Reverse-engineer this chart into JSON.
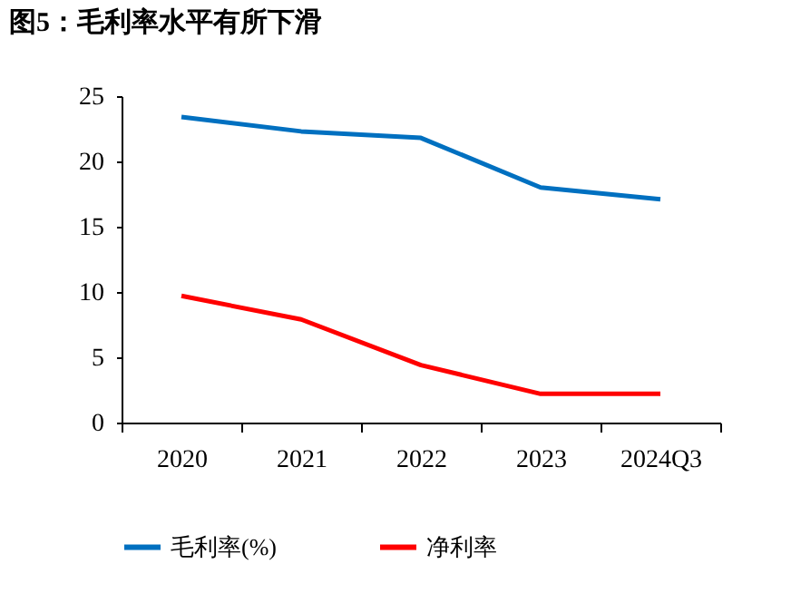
{
  "chart_data": {
    "type": "line",
    "title": "图5：毛利率水平有所下滑",
    "categories": [
      "2020",
      "2021",
      "2022",
      "2023",
      "2024Q3"
    ],
    "series": [
      {
        "name": "毛利率(%)",
        "color": "#0070c0",
        "values": [
          23.4,
          22.3,
          21.8,
          18.0,
          17.1
        ]
      },
      {
        "name": "净利率",
        "color": "#ff0000",
        "values": [
          9.7,
          7.9,
          4.4,
          2.2,
          2.2
        ]
      }
    ],
    "ylim": [
      0,
      25
    ],
    "yticks": [
      0,
      5,
      10,
      15,
      20,
      25
    ],
    "grid": false,
    "legend": "bottom",
    "marker": "none",
    "line_style": "solid"
  }
}
